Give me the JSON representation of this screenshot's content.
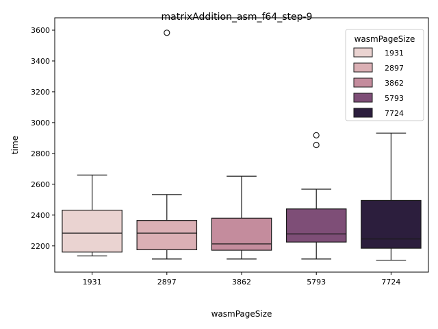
{
  "chart_data": {
    "type": "box",
    "title": "matrixAddition_asm_f64_step-9",
    "xlabel": "wasmPageSize",
    "ylabel": "time",
    "categories": [
      "1931",
      "2897",
      "3862",
      "5793",
      "7724"
    ],
    "ylim": [
      2030,
      3680
    ],
    "yticks": [
      2200,
      2400,
      2600,
      2800,
      3000,
      3200,
      3400,
      3600
    ],
    "ytick_labels": [
      "2200",
      "2400",
      "2600",
      "2800",
      "3000",
      "3200",
      "3400",
      "3600"
    ],
    "grid": false,
    "legend": {
      "title": "wasmPageSize",
      "position": "top-right",
      "entries": [
        "1931",
        "2897",
        "3862",
        "5793",
        "7724"
      ]
    },
    "series": [
      {
        "category": "1931",
        "color": "#ead3d1",
        "whisker_low": 2135,
        "q1": 2160,
        "median": 2283,
        "q3": 2432,
        "whisker_high": 2660,
        "outliers": []
      },
      {
        "category": "2897",
        "color": "#dbb0b5",
        "whisker_low": 2115,
        "q1": 2175,
        "median": 2283,
        "q3": 2365,
        "whisker_high": 2533,
        "outliers": [
          3583
        ]
      },
      {
        "category": "3862",
        "color": "#c48c9d",
        "whisker_low": 2115,
        "q1": 2172,
        "median": 2213,
        "q3": 2380,
        "whisker_high": 2652,
        "outliers": []
      },
      {
        "category": "5793",
        "color": "#7e4e77",
        "whisker_low": 2115,
        "q1": 2225,
        "median": 2278,
        "q3": 2440,
        "whisker_high": 2568,
        "outliers": [
          2918,
          2855
        ]
      },
      {
        "category": "7724",
        "color": "#2c1e3d",
        "whisker_low": 2107,
        "q1": 2185,
        "median": 2245,
        "q3": 2495,
        "whisker_high": 2932,
        "outliers": []
      }
    ]
  }
}
